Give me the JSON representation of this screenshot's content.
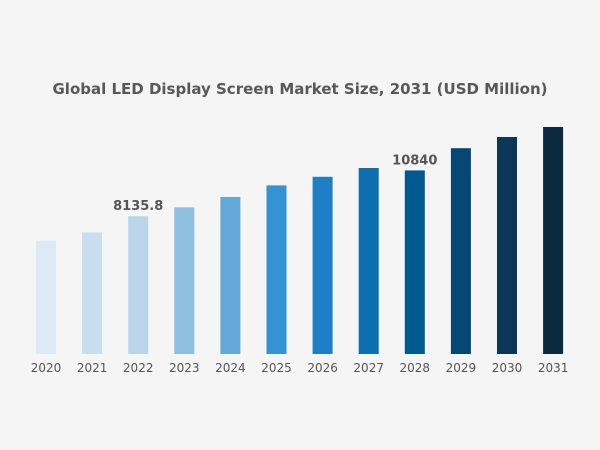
{
  "chart_data": {
    "type": "bar",
    "title": "Global LED Display Screen Market Size, 2031 (USD Million)",
    "xlabel": "",
    "ylabel": "",
    "categories": [
      "2020",
      "2021",
      "2022",
      "2023",
      "2024",
      "2025",
      "2026",
      "2027",
      "2028",
      "2029",
      "2030",
      "2031"
    ],
    "values": [
      6680,
      7180,
      8135.8,
      8660,
      9270,
      9950,
      10460,
      10980,
      10840,
      12150,
      12810,
      13400
    ],
    "data_labels": [
      {
        "category": "2022",
        "text": "8135.8"
      },
      {
        "category": "2028",
        "text": "10840"
      }
    ],
    "ylim": [
      0,
      13400
    ],
    "grid": false,
    "legend": "none",
    "colors": [
      "#dceaf7",
      "#c8ddef",
      "#bad5ea",
      "#8fbfe0",
      "#63a8d8",
      "#3593d5",
      "#1f7fc4",
      "#0c6fb0",
      "#005a8f",
      "#064875",
      "#0b3656",
      "#0b2a40"
    ]
  }
}
